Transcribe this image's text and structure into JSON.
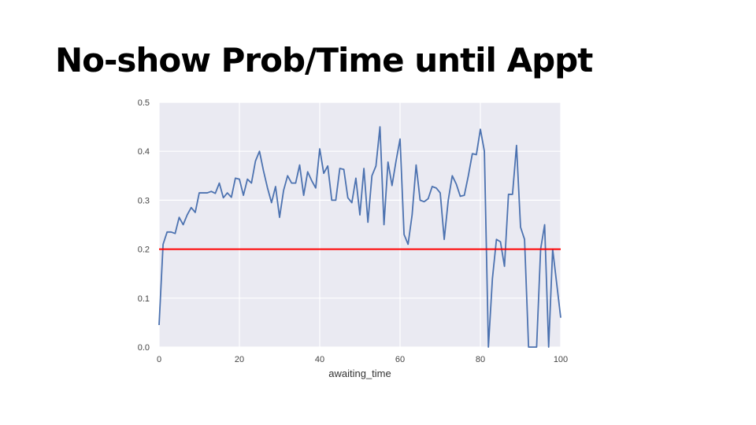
{
  "slide": {
    "title": "No-show Prob/Time until Appt"
  },
  "chart_data": {
    "type": "line",
    "xlabel": "awaiting_time",
    "ylabel": "",
    "xlim": [
      0,
      100
    ],
    "ylim": [
      0,
      0.5
    ],
    "xticks": [
      0,
      20,
      40,
      60,
      80,
      100
    ],
    "yticks": [
      0.0,
      0.1,
      0.2,
      0.3,
      0.4,
      0.5
    ],
    "xtick_labels": [
      "0",
      "20",
      "40",
      "60",
      "80",
      "100"
    ],
    "ytick_labels": [
      "0.0",
      "0.1",
      "0.2",
      "0.3",
      "0.4",
      "0.5"
    ],
    "grid": true,
    "background_color": "#EAEAF2",
    "series": [
      {
        "color": "#4C72B0",
        "x": [
          0,
          1,
          2,
          3,
          4,
          5,
          6,
          7,
          8,
          9,
          10,
          11,
          12,
          13,
          14,
          15,
          16,
          17,
          18,
          19,
          20,
          21,
          22,
          23,
          24,
          25,
          26,
          27,
          28,
          29,
          30,
          31,
          32,
          33,
          34,
          35,
          36,
          37,
          38,
          39,
          40,
          41,
          42,
          43,
          44,
          45,
          46,
          47,
          48,
          49,
          50,
          51,
          52,
          53,
          54,
          55,
          56,
          57,
          58,
          59,
          60,
          61,
          62,
          63,
          64,
          65,
          66,
          67,
          68,
          69,
          70,
          71,
          72,
          73,
          74,
          75,
          76,
          77,
          78,
          79,
          80,
          81,
          82,
          83,
          84,
          85,
          86,
          87,
          88,
          89,
          90,
          91,
          92,
          93,
          94,
          95,
          96,
          97,
          98,
          99,
          100
        ],
        "y": [
          0.045,
          0.21,
          0.235,
          0.235,
          0.232,
          0.265,
          0.25,
          0.27,
          0.285,
          0.275,
          0.315,
          0.315,
          0.315,
          0.318,
          0.314,
          0.335,
          0.305,
          0.315,
          0.306,
          0.345,
          0.343,
          0.31,
          0.343,
          0.335,
          0.38,
          0.4,
          0.36,
          0.325,
          0.295,
          0.328,
          0.265,
          0.32,
          0.35,
          0.335,
          0.335,
          0.372,
          0.31,
          0.358,
          0.34,
          0.325,
          0.405,
          0.355,
          0.37,
          0.3,
          0.3,
          0.365,
          0.363,
          0.305,
          0.295,
          0.345,
          0.27,
          0.365,
          0.255,
          0.35,
          0.37,
          0.45,
          0.25,
          0.378,
          0.33,
          0.38,
          0.425,
          0.23,
          0.21,
          0.27,
          0.372,
          0.3,
          0.297,
          0.303,
          0.328,
          0.325,
          0.315,
          0.22,
          0.3,
          0.35,
          0.333,
          0.308,
          0.31,
          0.35,
          0.395,
          0.393,
          0.445,
          0.4,
          0.0,
          0.14,
          0.22,
          0.215,
          0.165,
          0.312,
          0.312,
          0.412,
          0.245,
          0.22,
          0.0,
          0.0,
          0.0,
          0.2,
          0.25,
          0.0,
          0.2,
          0.13,
          0.06
        ]
      }
    ],
    "reference_lines": [
      {
        "y": 0.2,
        "color": "#FF0000"
      }
    ]
  }
}
